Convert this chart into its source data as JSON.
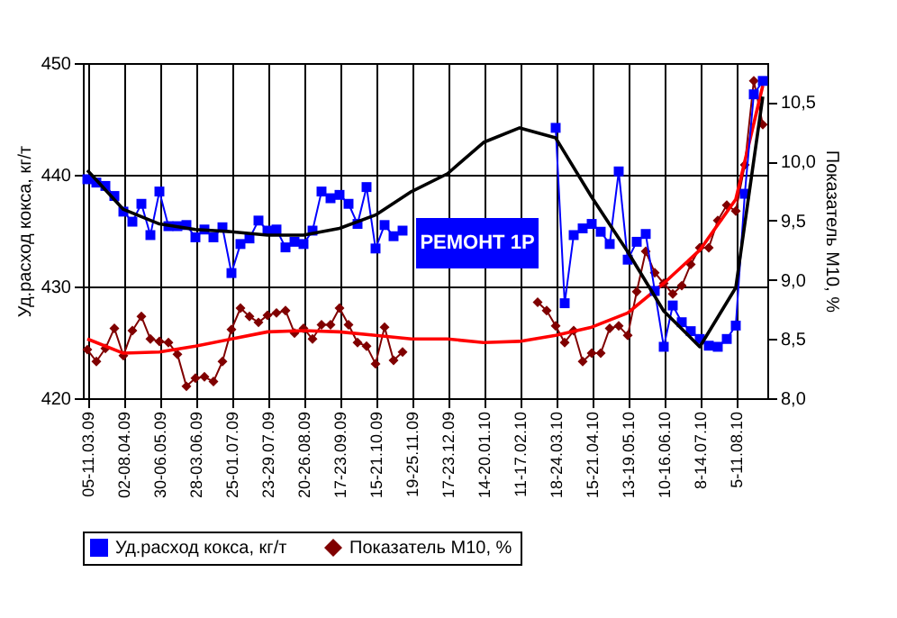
{
  "chart_data": {
    "type": "line",
    "categories": [
      "05-11.03.09",
      null,
      null,
      null,
      "02-08.04.09",
      null,
      null,
      null,
      "30-06.05.09",
      null,
      null,
      null,
      "28-03.06.09",
      null,
      null,
      null,
      "25-01.07.09",
      null,
      null,
      null,
      "23-29.07.09",
      null,
      null,
      null,
      "20-26.08.09",
      null,
      null,
      null,
      "17-23.09.09",
      null,
      null,
      null,
      "15-21.10.09",
      null,
      null,
      null,
      "19-25.11.09",
      null,
      null,
      null,
      "17-23.12.09",
      null,
      null,
      null,
      "14-20.01.10",
      null,
      null,
      null,
      "11-17.02.10",
      null,
      null,
      null,
      "18-24.03.10",
      null,
      null,
      null,
      "15-21.04.10",
      null,
      null,
      null,
      "13-19.05.10",
      null,
      null,
      null,
      "10-16.06.10",
      null,
      null,
      null,
      "8-14.07.10",
      null,
      null,
      null,
      "5-11.08.10",
      null,
      null,
      null
    ],
    "ylabel": "Уд.расход кокса, кг/т",
    "y2label": "Показатель М10, %",
    "ylim": [
      420,
      450
    ],
    "yticks": [
      420,
      430,
      440,
      450
    ],
    "y2lim": [
      8.0,
      10.83
    ],
    "y2ticks": [
      {
        "value": 8.0,
        "label": "8,0"
      },
      {
        "value": 8.5,
        "label": "8,5"
      },
      {
        "value": 9.0,
        "label": "9,0"
      },
      {
        "value": 9.5,
        "label": "9,5"
      },
      {
        "value": 10.0,
        "label": "10,0"
      },
      {
        "value": 10.5,
        "label": "10,5"
      }
    ],
    "grid": true,
    "legend": "bottom",
    "annotations": [
      "РЕМОНТ 1Р"
    ],
    "series": [
      {
        "name": "Уд.расход кокса, кг/т",
        "color": "#0000ff",
        "marker": "square",
        "values": [
          439.6,
          439.3,
          439.0,
          438.1,
          436.7,
          435.8,
          437.4,
          434.6,
          438.5,
          435.4,
          435.4,
          435.5,
          434.4,
          435.1,
          434.4,
          435.3,
          431.2,
          433.8,
          434.3,
          435.9,
          435.0,
          435.1,
          433.5,
          434.0,
          433.8,
          435.0,
          438.5,
          437.9,
          438.2,
          437.4,
          435.6,
          438.9,
          433.4,
          435.5,
          434.5,
          435.0,
          null,
          null,
          null,
          null,
          null,
          null,
          null,
          null,
          null,
          null,
          null,
          null,
          null,
          null,
          null,
          null,
          444.2,
          428.5,
          434.6,
          435.2,
          435.6,
          434.9,
          433.8,
          440.3,
          432.4,
          434.0,
          434.7,
          429.6,
          424.6,
          428.3,
          426.8,
          426.0,
          425.3,
          424.7,
          424.6,
          425.3,
          426.5,
          438.3,
          447.2,
          448.4
        ]
      },
      {
        "name": "Показатель М10, %",
        "color": "#800000",
        "marker": "diamond",
        "axis": "y2",
        "values": [
          8.41,
          8.31,
          8.42,
          8.59,
          8.36,
          8.57,
          8.69,
          8.5,
          8.48,
          8.47,
          8.37,
          8.1,
          8.17,
          8.18,
          8.14,
          8.31,
          8.58,
          8.76,
          8.69,
          8.64,
          8.7,
          8.72,
          8.74,
          8.55,
          8.59,
          8.5,
          8.62,
          8.62,
          8.76,
          8.62,
          8.47,
          8.44,
          8.29,
          8.6,
          8.32,
          8.39,
          null,
          null,
          null,
          null,
          null,
          null,
          null,
          null,
          null,
          null,
          null,
          null,
          null,
          null,
          8.81,
          8.74,
          8.61,
          8.47,
          8.57,
          8.31,
          8.38,
          8.38,
          8.59,
          8.61,
          8.53,
          8.9,
          9.24,
          9.06,
          8.97,
          8.88,
          8.95,
          9.13,
          9.27,
          9.27,
          9.5,
          9.63,
          9.58,
          9.97,
          10.68,
          10.31
        ]
      },
      {
        "type": "line",
        "color": "#000000",
        "marker": "none",
        "values": [
          440.4,
          null,
          null,
          null,
          436.9,
          null,
          null,
          null,
          435.6,
          null,
          null,
          null,
          435.1,
          null,
          null,
          null,
          434.9,
          null,
          null,
          null,
          434.6,
          null,
          null,
          null,
          434.6,
          null,
          null,
          null,
          435.2,
          null,
          null,
          null,
          436.4,
          null,
          null,
          null,
          438.5,
          null,
          null,
          null,
          440.1,
          null,
          null,
          null,
          442.9,
          null,
          null,
          null,
          444.2,
          null,
          null,
          null,
          443.3,
          null,
          null,
          null,
          438.0,
          null,
          null,
          null,
          433.1,
          null,
          null,
          null,
          427.8,
          null,
          null,
          null,
          424.6,
          null,
          null,
          null,
          429.9,
          null,
          null,
          447.0
        ]
      },
      {
        "type": "line",
        "color": "#ff0000",
        "marker": "none",
        "axis": "y2",
        "values": [
          8.5,
          null,
          null,
          null,
          8.38,
          null,
          null,
          null,
          8.39,
          null,
          null,
          null,
          8.44,
          null,
          null,
          null,
          8.5,
          null,
          null,
          null,
          8.56,
          null,
          null,
          null,
          8.57,
          null,
          null,
          null,
          8.56,
          null,
          null,
          null,
          8.53,
          null,
          null,
          null,
          8.5,
          null,
          null,
          null,
          8.5,
          null,
          null,
          null,
          8.47,
          null,
          null,
          null,
          8.48,
          null,
          null,
          null,
          8.53,
          null,
          null,
          null,
          8.6,
          null,
          null,
          null,
          8.72,
          null,
          null,
          null,
          8.97,
          null,
          null,
          null,
          9.25,
          null,
          null,
          null,
          9.68,
          null,
          null,
          10.64
        ]
      }
    ]
  }
}
